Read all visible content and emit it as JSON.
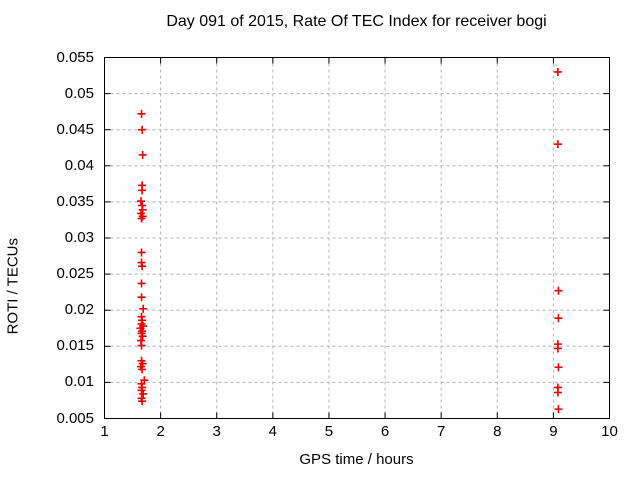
{
  "chart_data": {
    "type": "scatter",
    "title": "Day 091 of 2015, Rate Of TEC Index for receiver bogi",
    "xlabel": "GPS time / hours",
    "ylabel": "ROTI / TECUs",
    "xlim": [
      1,
      10
    ],
    "ylim": [
      0.005,
      0.055
    ],
    "x_ticks": [
      1,
      2,
      3,
      4,
      5,
      6,
      7,
      8,
      9,
      10
    ],
    "x_tick_labels": [
      "1",
      "2",
      "3",
      "4",
      "5",
      "6",
      "7",
      "8",
      "9",
      "10"
    ],
    "y_ticks": [
      0.005,
      0.01,
      0.015,
      0.02,
      0.025,
      0.03,
      0.035,
      0.04,
      0.045,
      0.05,
      0.055
    ],
    "y_tick_labels": [
      "0.005",
      "0.01",
      "0.015",
      "0.02",
      "0.025",
      "0.03",
      "0.035",
      "0.04",
      "0.045",
      "0.05",
      "0.055"
    ],
    "grid": true,
    "legend": "none",
    "marker": {
      "shape": "plus",
      "color": "#ee0000",
      "size": 8
    },
    "colors": {
      "background": "#ffffff",
      "frame": "#000000",
      "grid": "#b4b4b4",
      "text": "#000000"
    },
    "series": [
      {
        "name": "ROTI",
        "points": [
          [
            1.66,
            0.0472
          ],
          [
            1.67,
            0.045
          ],
          [
            1.68,
            0.0415
          ],
          [
            1.67,
            0.0373
          ],
          [
            1.67,
            0.0366
          ],
          [
            1.65,
            0.0351
          ],
          [
            1.67,
            0.0345
          ],
          [
            1.68,
            0.0339
          ],
          [
            1.65,
            0.0334
          ],
          [
            1.68,
            0.033
          ],
          [
            1.66,
            0.0327
          ],
          [
            1.66,
            0.028
          ],
          [
            1.66,
            0.0266
          ],
          [
            1.67,
            0.0261
          ],
          [
            1.66,
            0.0237
          ],
          [
            1.66,
            0.0218
          ],
          [
            1.69,
            0.0202
          ],
          [
            1.66,
            0.0191
          ],
          [
            1.67,
            0.0186
          ],
          [
            1.66,
            0.0181
          ],
          [
            1.69,
            0.0178
          ],
          [
            1.64,
            0.0175
          ],
          [
            1.67,
            0.0171
          ],
          [
            1.66,
            0.0168
          ],
          [
            1.68,
            0.0164
          ],
          [
            1.65,
            0.0158
          ],
          [
            1.66,
            0.0151
          ],
          [
            1.66,
            0.013
          ],
          [
            1.68,
            0.0126
          ],
          [
            1.65,
            0.0122
          ],
          [
            1.67,
            0.0118
          ],
          [
            1.71,
            0.0103
          ],
          [
            1.66,
            0.0098
          ],
          [
            1.67,
            0.0093
          ],
          [
            1.66,
            0.0089
          ],
          [
            1.69,
            0.0084
          ],
          [
            1.66,
            0.0078
          ],
          [
            1.67,
            0.0074
          ],
          [
            9.08,
            0.053
          ],
          [
            9.08,
            0.043
          ],
          [
            9.09,
            0.0227
          ],
          [
            9.09,
            0.0189
          ],
          [
            9.08,
            0.0153
          ],
          [
            9.08,
            0.0147
          ],
          [
            9.09,
            0.0121
          ],
          [
            9.08,
            0.0093
          ],
          [
            9.08,
            0.0086
          ],
          [
            9.09,
            0.0063
          ]
        ]
      }
    ]
  }
}
